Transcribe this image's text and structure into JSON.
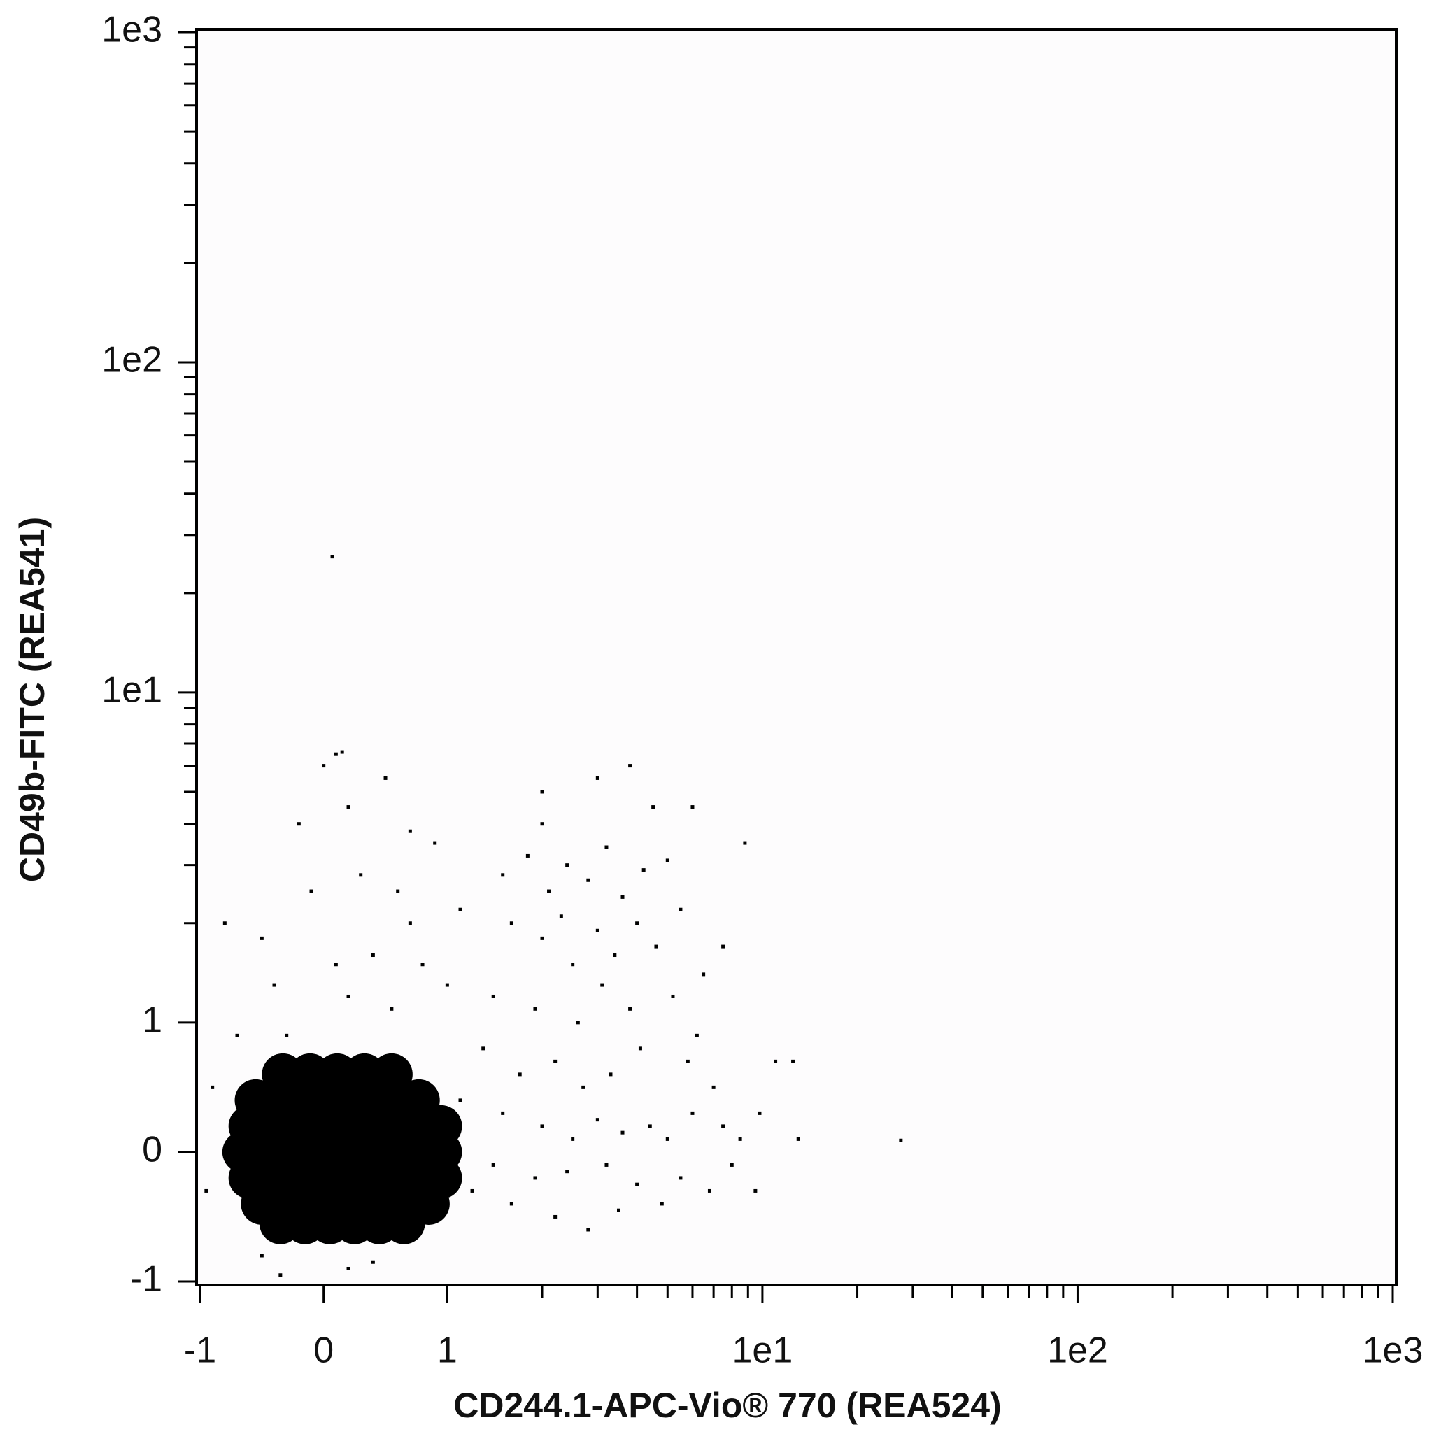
{
  "chart_data": {
    "type": "scatter",
    "xlabel": "CD244.1-APC-Vio® 770 (REA524)",
    "ylabel": "CD49b-FITC (REA541)",
    "xscale": "biexponential",
    "yscale": "biexponential",
    "xlim": [
      -1,
      1000
    ],
    "ylim": [
      -1,
      1000
    ],
    "xticks": [
      -1,
      0,
      1,
      {
        "value": 10,
        "label": "1e1"
      },
      {
        "value": 100,
        "label": "1e2"
      },
      {
        "value": 1000,
        "label": "1e3"
      }
    ],
    "yticks": [
      -1,
      0,
      1,
      {
        "value": 10,
        "label": "1e1"
      },
      {
        "value": 100,
        "label": "1e2"
      },
      {
        "value": 1000,
        "label": "1e3"
      }
    ],
    "xminorticks": [
      2,
      3,
      4,
      5,
      6,
      7,
      8,
      9,
      20,
      30,
      40,
      50,
      60,
      70,
      80,
      90,
      200,
      300,
      400,
      500,
      600,
      700,
      800,
      900
    ],
    "yminorticks": [
      2,
      3,
      4,
      5,
      6,
      7,
      8,
      9,
      20,
      30,
      40,
      50,
      60,
      70,
      80,
      90,
      200,
      300,
      400,
      500,
      600,
      700,
      800,
      900
    ],
    "series": [
      {
        "color": "#000000",
        "marker": "dense",
        "x": [
          -0.33,
          -0.11,
          0.11,
          0.33,
          0.55,
          -0.55,
          -0.33,
          -0.11,
          0.11,
          0.33,
          0.55,
          0.77,
          -0.6,
          -0.4,
          -0.2,
          0,
          0.2,
          0.4,
          0.6,
          0.8,
          0.95,
          -0.65,
          -0.45,
          -0.25,
          -0.05,
          0.15,
          0.35,
          0.55,
          0.75,
          0.95,
          -0.6,
          -0.4,
          -0.2,
          0,
          0.2,
          0.4,
          0.6,
          0.8,
          0.95,
          -0.5,
          -0.3,
          -0.1,
          0.1,
          0.3,
          0.5,
          0.7,
          0.85,
          -0.35,
          -0.15,
          0.05,
          0.25,
          0.45,
          0.65
        ],
        "y": [
          0.6,
          0.6,
          0.6,
          0.6,
          0.6,
          0.4,
          0.4,
          0.4,
          0.4,
          0.4,
          0.4,
          0.4,
          0.2,
          0.2,
          0.2,
          0.2,
          0.2,
          0.2,
          0.2,
          0.2,
          0.2,
          0,
          0,
          0,
          0,
          0,
          0,
          0,
          0,
          0,
          -0.2,
          -0.2,
          -0.2,
          -0.2,
          -0.2,
          -0.2,
          -0.2,
          -0.2,
          -0.2,
          -0.4,
          -0.4,
          -0.4,
          -0.4,
          -0.4,
          -0.4,
          -0.4,
          -0.4,
          -0.55,
          -0.55,
          -0.55,
          -0.55,
          -0.55,
          -0.55
        ]
      },
      {
        "color": "#000000",
        "marker": "dot",
        "x": [
          -0.8,
          -0.5,
          -0.3,
          0.0,
          0.1,
          0.15,
          0.5,
          -0.2,
          0.2,
          0.7,
          0.9,
          0.6,
          0.3,
          -0.1,
          0.4,
          0.8,
          1.1,
          0.2,
          -0.4,
          0.55,
          -0.7,
          1.0,
          0.1,
          0.7,
          -0.9,
          -0.95,
          -0.5,
          0.2,
          0.4,
          -0.35,
          1.5,
          1.8,
          2.1,
          2.4,
          2.8,
          3.2,
          3.6,
          4.2,
          5.0,
          5.5,
          1.6,
          2.0,
          2.5,
          2.3,
          3.0,
          3.4,
          4.0,
          4.6,
          1.4,
          1.9,
          2.6,
          3.1,
          3.8,
          5.2,
          6.5,
          1.3,
          1.7,
          2.2,
          2.7,
          3.3,
          4.1,
          5.8,
          7.0,
          1.5,
          2.0,
          2.5,
          3.0,
          3.6,
          4.4,
          5.0,
          6.0,
          7.5,
          8.5,
          1.4,
          1.9,
          2.4,
          3.2,
          4.0,
          5.5,
          6.8,
          8.0,
          1.6,
          2.2,
          3.5,
          4.8,
          2.8,
          9.5,
          9.8,
          11.0,
          12.5,
          13,
          27.5,
          2.0,
          3.0,
          2.0,
          4.5,
          6.0,
          8.8,
          3.8,
          0.07,
          7.5,
          6.2,
          1.2,
          1.1
        ],
        "y": [
          2,
          1.8,
          0.9,
          6,
          6.5,
          6.6,
          5.5,
          4,
          4.5,
          3.8,
          3.5,
          2.5,
          2.8,
          2.5,
          1.6,
          1.5,
          2.2,
          1.2,
          1.3,
          1.1,
          0.9,
          1.3,
          1.5,
          2.0,
          0.5,
          -0.3,
          -0.8,
          -0.9,
          -0.85,
          -0.95,
          2.8,
          3.2,
          2.5,
          3.0,
          2.7,
          3.4,
          2.4,
          2.9,
          3.1,
          2.2,
          2.0,
          1.8,
          1.5,
          2.1,
          1.9,
          1.6,
          2.0,
          1.7,
          1.2,
          1.1,
          1.0,
          1.3,
          1.1,
          1.2,
          1.4,
          0.8,
          0.6,
          0.7,
          0.5,
          0.6,
          0.8,
          0.7,
          0.5,
          0.3,
          0.2,
          0.1,
          0.25,
          0.15,
          0.2,
          0.1,
          0.3,
          0.2,
          0.1,
          -0.1,
          -0.2,
          -0.15,
          -0.1,
          -0.25,
          -0.2,
          -0.3,
          -0.1,
          -0.4,
          -0.5,
          -0.45,
          -0.4,
          -0.6,
          -0.3,
          0.3,
          0.7,
          0.7,
          0.1,
          0.09,
          4.0,
          5.5,
          5.0,
          4.5,
          4.5,
          3.5,
          6.0,
          25.8,
          1.7,
          0.9,
          -0.3,
          0.4
        ]
      }
    ]
  }
}
